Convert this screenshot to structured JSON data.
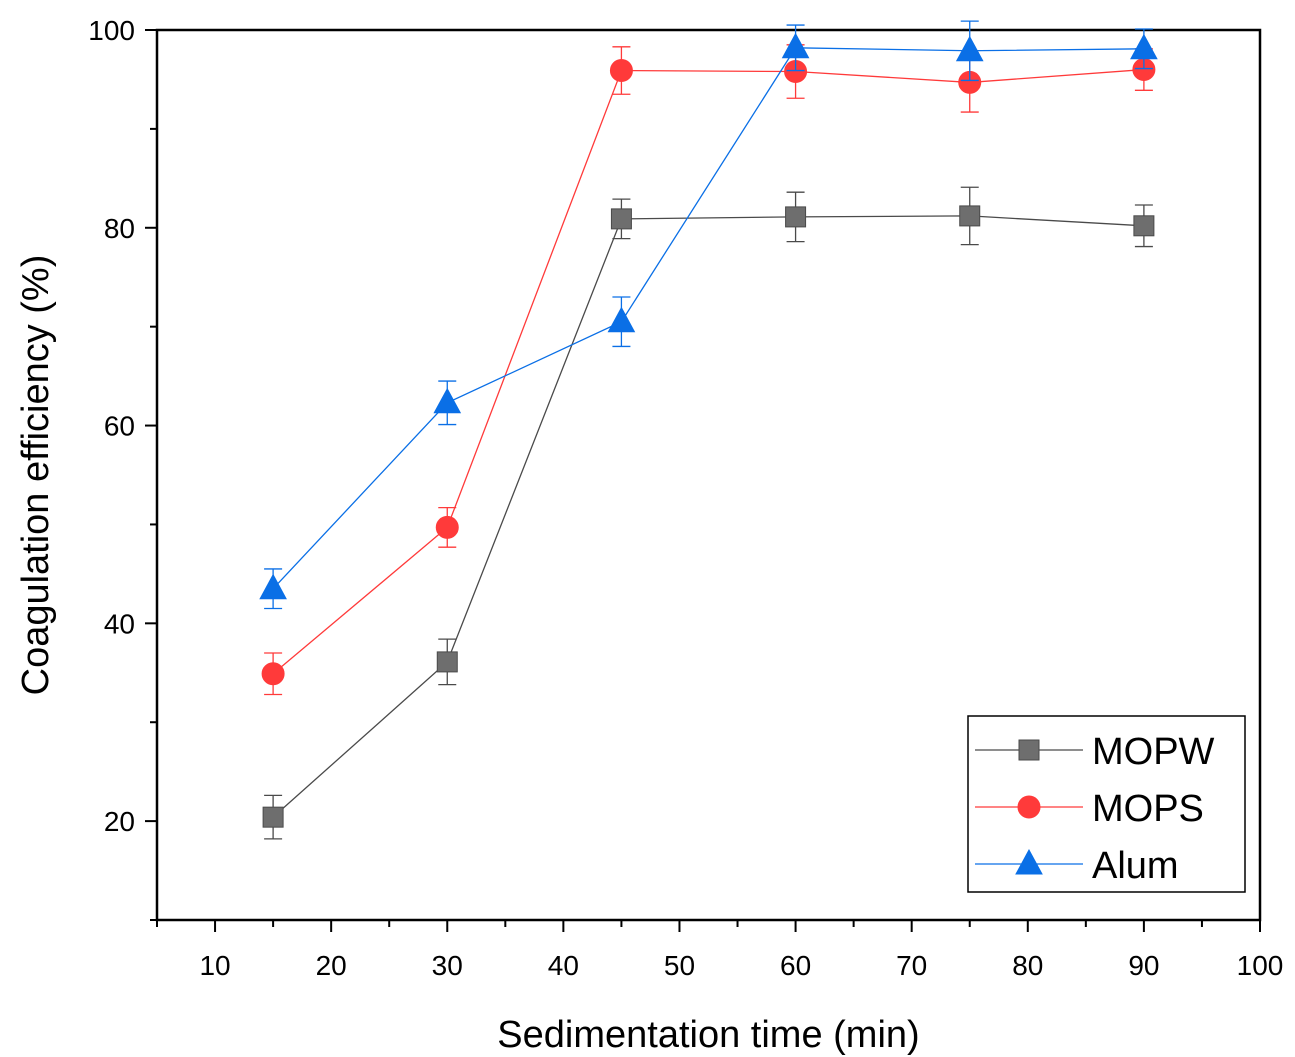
{
  "chart_data": {
    "type": "line",
    "title": "",
    "xlabel": "Sedimentation time (min)",
    "ylabel": "Coagulation efficiency (%)",
    "xlim": [
      5,
      100
    ],
    "ylim": [
      10,
      100
    ],
    "xticks": [
      10,
      20,
      30,
      40,
      50,
      60,
      70,
      80,
      90,
      100
    ],
    "yticks": [
      20,
      40,
      60,
      80,
      100
    ],
    "grid": false,
    "legend_position": "bottom-right",
    "x": [
      15,
      30,
      45,
      60,
      75,
      90
    ],
    "series": [
      {
        "name": "MOPW",
        "marker": "square",
        "color": "#6e6e6e",
        "line_color": "#4a4a4a",
        "values": [
          20.4,
          36.1,
          80.9,
          81.1,
          81.2,
          80.2
        ],
        "errors": [
          2.2,
          2.3,
          2.0,
          2.5,
          2.9,
          2.1
        ]
      },
      {
        "name": "MOPS",
        "marker": "circle",
        "color": "#ff3a3a",
        "line_color": "#ff3a3a",
        "values": [
          34.9,
          49.7,
          95.9,
          95.8,
          94.7,
          96.0
        ],
        "errors": [
          2.1,
          2.0,
          2.4,
          2.7,
          3.0,
          2.1
        ]
      },
      {
        "name": "Alum",
        "marker": "triangle",
        "color": "#0a6fe6",
        "line_color": "#0a6fe6",
        "values": [
          43.5,
          62.3,
          70.5,
          98.2,
          97.9,
          98.1
        ],
        "errors": [
          2.0,
          2.2,
          2.5,
          2.3,
          3.0,
          2.0
        ]
      }
    ]
  }
}
